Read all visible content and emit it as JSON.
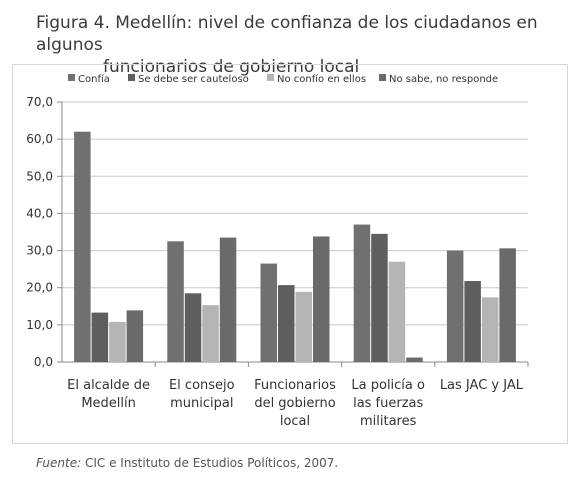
{
  "title_lines": [
    "Figura 4. Medellín: nivel de confianza de los ciudadanos en algunos",
    "funcionarios de gobierno local"
  ],
  "source": {
    "label": "Fuente:",
    "text": "CIC e Instituto de Estudios Políticos, 2007."
  },
  "chart_data": {
    "type": "bar",
    "title": "",
    "xlabel": "",
    "ylabel": "",
    "ylim": [
      0,
      70
    ],
    "yticks": [
      "0,0",
      "10,0",
      "20,0",
      "30,0",
      "40,0",
      "50,0",
      "60,0",
      "70,0"
    ],
    "grid": true,
    "legend_position": "top-left",
    "categories": [
      [
        "El alcalde de",
        "Medellín"
      ],
      [
        "El consejo",
        "municipal"
      ],
      [
        "Funcionarios",
        "del gobierno",
        "local"
      ],
      [
        "La policía o",
        "las fuerzas",
        "militares"
      ],
      [
        "Las JAC y JAL"
      ]
    ],
    "series": [
      {
        "name": "Confía",
        "color": "#707070",
        "values": [
          62.0,
          32.5,
          26.5,
          37.0,
          30.0
        ]
      },
      {
        "name": "Se debe ser cauteloso",
        "color": "#5e5e5e",
        "values": [
          13.3,
          18.5,
          20.7,
          34.5,
          21.8
        ]
      },
      {
        "name": "No confío en ellos",
        "color": "#b4b4b4",
        "values": [
          10.8,
          15.3,
          18.9,
          27.0,
          17.4
        ]
      },
      {
        "name": "No sabe, no responde",
        "color": "#6a6a6a",
        "values": [
          13.9,
          33.5,
          33.8,
          1.2,
          30.6
        ]
      }
    ]
  }
}
